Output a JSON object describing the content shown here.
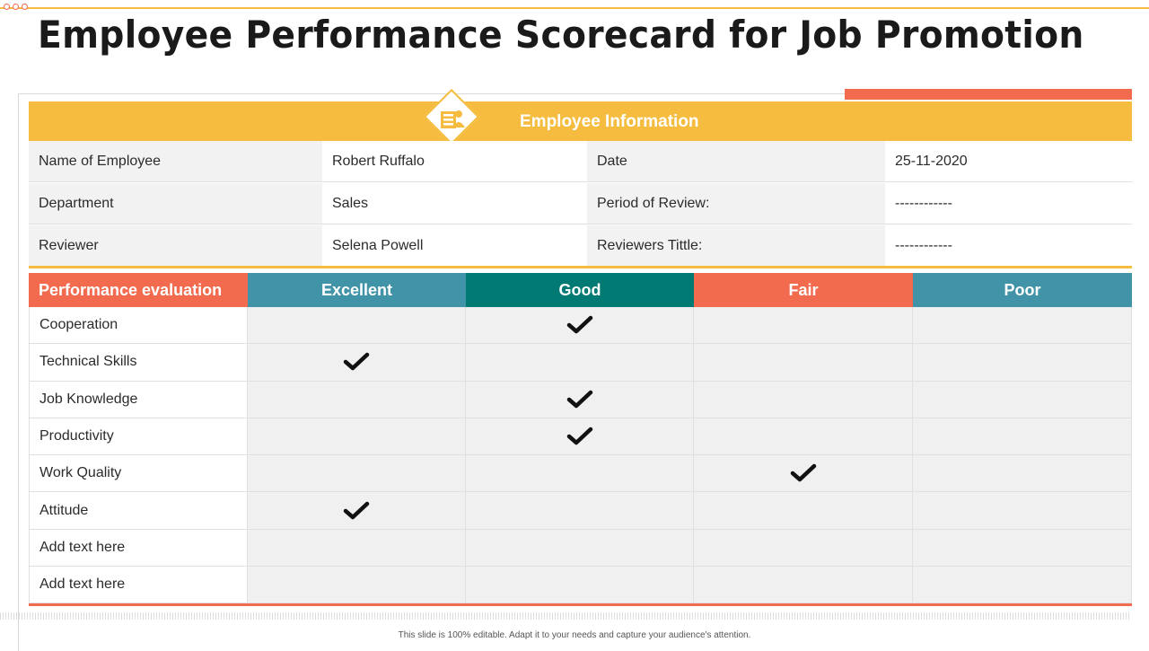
{
  "title": "Employee Performance Scorecard for Job Promotion",
  "info_header": "Employee Information",
  "employee_info": [
    {
      "label1": "Name of Employee",
      "value1": "Robert Ruffalo",
      "label2": "Date",
      "value2": "25-11-2020"
    },
    {
      "label1": "Department",
      "value1": "Sales",
      "label2": "Period of Review:",
      "value2": "------------"
    },
    {
      "label1": "Reviewer",
      "value1": "Selena Powell",
      "label2": "Reviewers Tittle:",
      "value2": "------------"
    }
  ],
  "evaluation": {
    "header_label": "Performance evaluation",
    "ratings": [
      "Excellent",
      "Good",
      "Fair",
      "Poor"
    ],
    "rows": [
      {
        "criterion": "Cooperation",
        "rating": "Good"
      },
      {
        "criterion": "Technical  Skills",
        "rating": "Excellent"
      },
      {
        "criterion": "Job Knowledge",
        "rating": "Good"
      },
      {
        "criterion": "Productivity",
        "rating": "Good"
      },
      {
        "criterion": "Work Quality",
        "rating": "Fair"
      },
      {
        "criterion": "Attitude",
        "rating": "Excellent"
      },
      {
        "criterion": "Add text here",
        "rating": ""
      },
      {
        "criterion": "Add text here",
        "rating": ""
      }
    ]
  },
  "footer": "This slide is 100% editable. Adapt it to your needs and capture your audience's attention.",
  "colors": {
    "yellow": "#f6bc3f",
    "coral": "#f26b4e",
    "teal_blue": "#4194a8",
    "dark_teal": "#007a73"
  }
}
